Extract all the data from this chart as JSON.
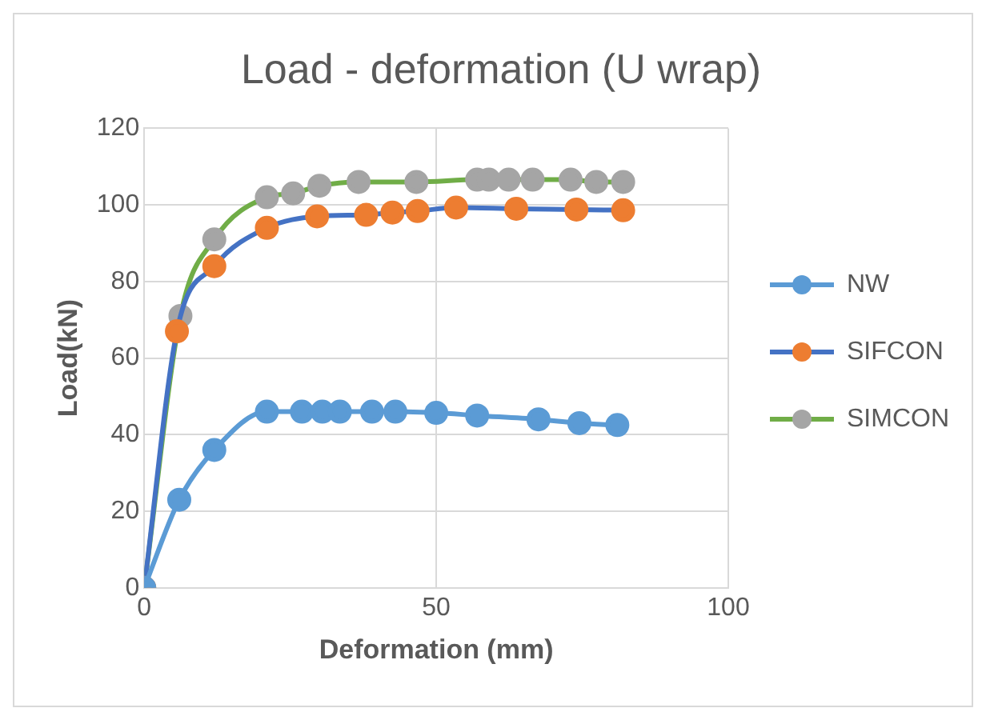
{
  "chart_data": {
    "type": "line",
    "title": "Load - deformation (U wrap)",
    "xlabel": "Deformation (mm)",
    "ylabel": "Load(kN)",
    "xlim": [
      0,
      100
    ],
    "xticks": [
      0,
      50,
      100
    ],
    "ylim": [
      0,
      120
    ],
    "yticks": [
      0,
      20,
      40,
      60,
      80,
      100,
      120
    ],
    "grid": true,
    "legend": "right",
    "marker": "circle",
    "line_style": "solid",
    "series": [
      {
        "name": "NW",
        "color": "#5b9bd5",
        "x": [
          0,
          6,
          12,
          21,
          27,
          30.5,
          33.5,
          39,
          43,
          50,
          57,
          67.5,
          74.5,
          81
        ],
        "values": [
          0,
          23,
          36,
          46,
          46,
          46,
          46,
          46,
          46,
          45.7,
          45,
          44,
          43,
          42.5
        ]
      },
      {
        "name": "SIFCON",
        "color": "#4472c4",
        "colors": [
          "#ed7d31",
          "#ed7d31",
          "#ed7d31",
          "#ed7d31",
          "#ed7d31",
          "#ed7d31",
          "#ed7d31",
          "#ed7d31",
          "#ed7d31",
          "#ed7d31",
          "#ed7d31",
          "#ed7d31"
        ],
        "x": [
          0,
          5.6,
          12,
          21,
          29.6,
          38,
          42.5,
          46.8,
          53.4,
          63.7,
          74,
          82
        ],
        "values": [
          0,
          67,
          84,
          94,
          97,
          97.4,
          98,
          98.4,
          99.3,
          99,
          98.8,
          98.6
        ]
      },
      {
        "name": "SIMCON",
        "color": "#70ad47",
        "colors": [
          "#a5a5a5",
          "#a5a5a5",
          "#a5a5a5",
          "#a5a5a5",
          "#a5a5a5",
          "#a5a5a5",
          "#a5a5a5",
          "#a5a5a5",
          "#a5a5a5",
          "#a5a5a5",
          "#a5a5a5",
          "#a5a5a5",
          "#a5a5a5",
          "#a5a5a5",
          "#a5a5a5"
        ],
        "x": [
          0,
          6.2,
          12,
          21,
          25.5,
          30,
          36.7,
          46.6,
          57,
          59,
          62.4,
          66.5,
          73,
          77.4,
          82
        ],
        "values": [
          0,
          71,
          91,
          102,
          103,
          105,
          106,
          106,
          106.6,
          106.6,
          106.6,
          106.6,
          106.6,
          106,
          106
        ]
      }
    ]
  }
}
